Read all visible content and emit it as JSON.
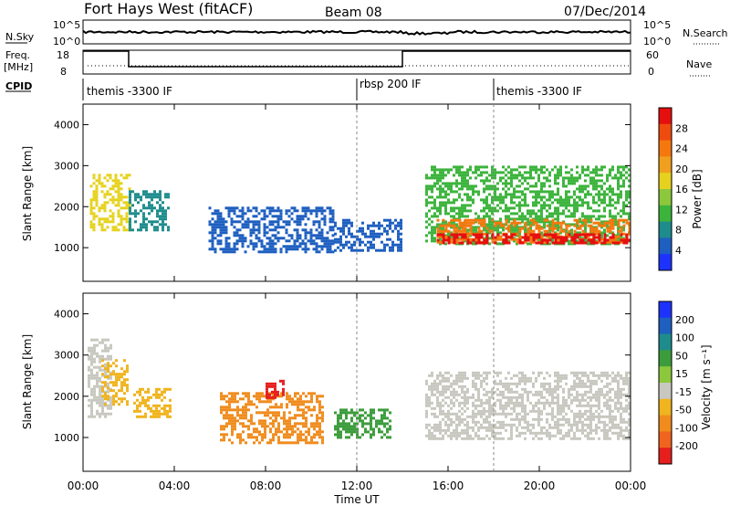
{
  "header": {
    "title": "Fort Hays West (fitACF)",
    "beam": "Beam 08",
    "date": "07/Dec/2014"
  },
  "top_panels": {
    "nsky_label": "N.Sky",
    "nsky_ticks": [
      "10^5",
      "10^0"
    ],
    "nsearch_label": "N.Search",
    "nsearch_ticks": [
      "10^5",
      "10^0"
    ],
    "freq_label": "Freq.",
    "freq_unit": "[MHz]",
    "freq_ticks": [
      "18",
      "8"
    ],
    "nave_label": "Nave",
    "nave_ticks": [
      "60",
      "0"
    ],
    "cpid_label": "CPID",
    "cpid_segments": [
      {
        "label": "themis -3300 IF",
        "start_hr": 0
      },
      {
        "label": "rbsp 200 IF",
        "start_hr": 12
      },
      {
        "label": "themis -3300 IF",
        "start_hr": 18
      }
    ]
  },
  "power_colorbar": {
    "label": "Power [dB]",
    "ticks": [
      "4",
      "8",
      "12",
      "16",
      "20",
      "24",
      "28"
    ],
    "colors": [
      "#1e32ff",
      "#1e5fc0",
      "#1e8c8c",
      "#3cb43c",
      "#8cc83c",
      "#e6d21e",
      "#f0a01e",
      "#f5780f",
      "#f04b0f",
      "#e60f0f"
    ]
  },
  "velocity_colorbar": {
    "label": "Velocity [m s⁻¹]",
    "ticks": [
      "200",
      "100",
      "50",
      "15",
      "-15",
      "-50",
      "-100",
      "-200"
    ],
    "colors": [
      "#1e32ff",
      "#1e5fc0",
      "#1e8c8c",
      "#3c9c3c",
      "#8cc83c",
      "#c8c8c0",
      "#f0b41e",
      "#f08c1e",
      "#f0641e",
      "#e61e1e"
    ]
  },
  "chart_data": {
    "type": "heatmap",
    "xlabel": "Time UT",
    "ylabel": "Slant Range [km]",
    "x_ticks": [
      "00:00",
      "04:00",
      "08:00",
      "12:00",
      "16:00",
      "20:00",
      "00:00"
    ],
    "x_range_hr": [
      0,
      24
    ],
    "y_ticks": [
      1000,
      2000,
      3000,
      4000
    ],
    "y_range_km": [
      180,
      4500
    ],
    "power_regions": [
      {
        "t0": 0.3,
        "t1": 2.0,
        "r0": 1400,
        "r1": 2800,
        "level": 5
      },
      {
        "t0": 2.0,
        "t1": 3.8,
        "r0": 1450,
        "r1": 2400,
        "level": 2
      },
      {
        "t0": 5.5,
        "t1": 11.0,
        "r0": 900,
        "r1": 2000,
        "level": 1
      },
      {
        "t0": 11.0,
        "t1": 14.0,
        "r0": 900,
        "r1": 1700,
        "level": 1
      },
      {
        "t0": 15.0,
        "t1": 24.0,
        "r0": 1100,
        "r1": 3000,
        "level": 3
      },
      {
        "t0": 15.5,
        "t1": 24.0,
        "r0": 1150,
        "r1": 1700,
        "level": 7
      },
      {
        "t0": 15.5,
        "t1": 24.0,
        "r0": 1100,
        "r1": 1350,
        "level": 9
      }
    ],
    "velocity_regions": [
      {
        "t0": 0.2,
        "t1": 1.2,
        "r0": 1500,
        "r1": 3400,
        "vel": 0
      },
      {
        "t0": 0.8,
        "t1": 2.0,
        "r0": 1800,
        "r1": 2900,
        "vel": -40
      },
      {
        "t0": 2.2,
        "t1": 3.8,
        "r0": 1500,
        "r1": 2200,
        "vel": -40
      },
      {
        "t0": 6.0,
        "t1": 10.5,
        "r0": 900,
        "r1": 2100,
        "vel": -80
      },
      {
        "t0": 8.0,
        "t1": 8.8,
        "r0": 2000,
        "r1": 2400,
        "vel": -200
      },
      {
        "t0": 11.0,
        "t1": 13.5,
        "r0": 1000,
        "r1": 1700,
        "vel": 40
      },
      {
        "t0": 15.0,
        "t1": 24.0,
        "r0": 1000,
        "r1": 2600,
        "vel": 0
      }
    ],
    "grid": false
  }
}
